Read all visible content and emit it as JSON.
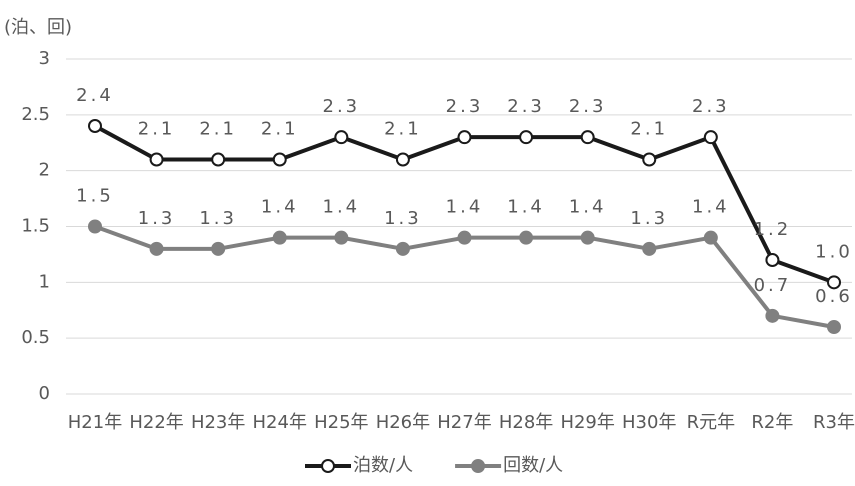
{
  "chart_data": {
    "type": "line",
    "y_axis_label": "(泊、回)",
    "categories": [
      "H21年",
      "H22年",
      "H23年",
      "H24年",
      "H25年",
      "H26年",
      "H27年",
      "H28年",
      "H29年",
      "H30年",
      "R元年",
      "R2年",
      "R3年"
    ],
    "series": [
      {
        "name": "泊数/人",
        "color": "#1a1a1a",
        "marker_fill": "#ffffff",
        "values": [
          2.4,
          2.1,
          2.1,
          2.1,
          2.3,
          2.1,
          2.3,
          2.3,
          2.3,
          2.1,
          2.3,
          1.2,
          1.0
        ],
        "value_labels": [
          "2.4",
          "2.1",
          "2.1",
          "2.1",
          "2.3",
          "2.1",
          "2.3",
          "2.3",
          "2.3",
          "2.1",
          "2.3",
          "1.2",
          "1.0"
        ]
      },
      {
        "name": "回数/人",
        "color": "#808080",
        "marker_fill": "#808080",
        "values": [
          1.5,
          1.3,
          1.3,
          1.4,
          1.4,
          1.3,
          1.4,
          1.4,
          1.4,
          1.3,
          1.4,
          0.7,
          0.6
        ]
      }
    ],
    "ylim": [
      0,
      3
    ],
    "yticks": [
      0,
      0.5,
      1,
      1.5,
      2,
      2.5,
      3
    ],
    "grid": true,
    "legend": "bottom"
  }
}
